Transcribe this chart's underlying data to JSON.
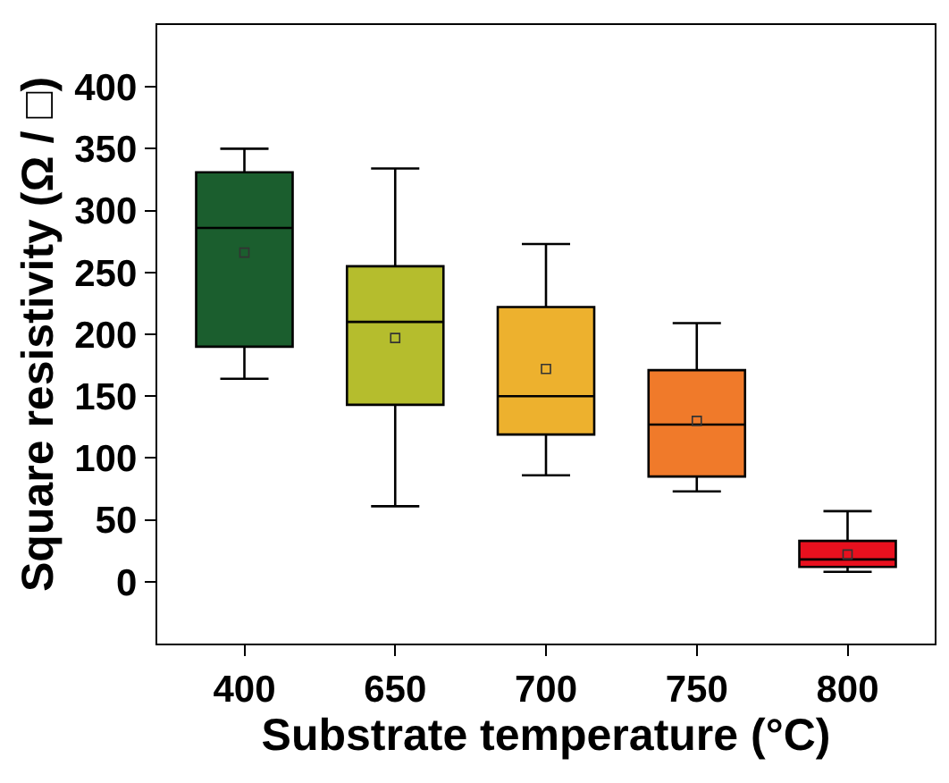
{
  "chart_data": {
    "type": "box",
    "xlabel": "Substrate temperature (°C)",
    "ylabel": "Square resistivity (Ω / □)",
    "categories": [
      "400",
      "650",
      "700",
      "750",
      "800"
    ],
    "colors": [
      "#1b5e2e",
      "#b5bd2d",
      "#edb12e",
      "#f07a2a",
      "#e8101e"
    ],
    "boxes": [
      {
        "low": 164,
        "q1": 190,
        "median": 286,
        "q3": 331,
        "high": 350,
        "mean": 266
      },
      {
        "low": 61,
        "q1": 143,
        "median": 210,
        "q3": 255,
        "high": 334,
        "mean": 197
      },
      {
        "low": 86,
        "q1": 119,
        "median": 150,
        "q3": 222,
        "high": 273,
        "mean": 172
      },
      {
        "low": 73,
        "q1": 85,
        "median": 127,
        "q3": 171,
        "high": 209,
        "mean": 130
      },
      {
        "low": 8,
        "q1": 12,
        "median": 18,
        "q3": 33,
        "high": 57,
        "mean": 22
      }
    ],
    "ylim": [
      -50,
      450
    ],
    "yticks": [
      0,
      50,
      100,
      150,
      200,
      250,
      300,
      350,
      400
    ],
    "marker": "square"
  }
}
